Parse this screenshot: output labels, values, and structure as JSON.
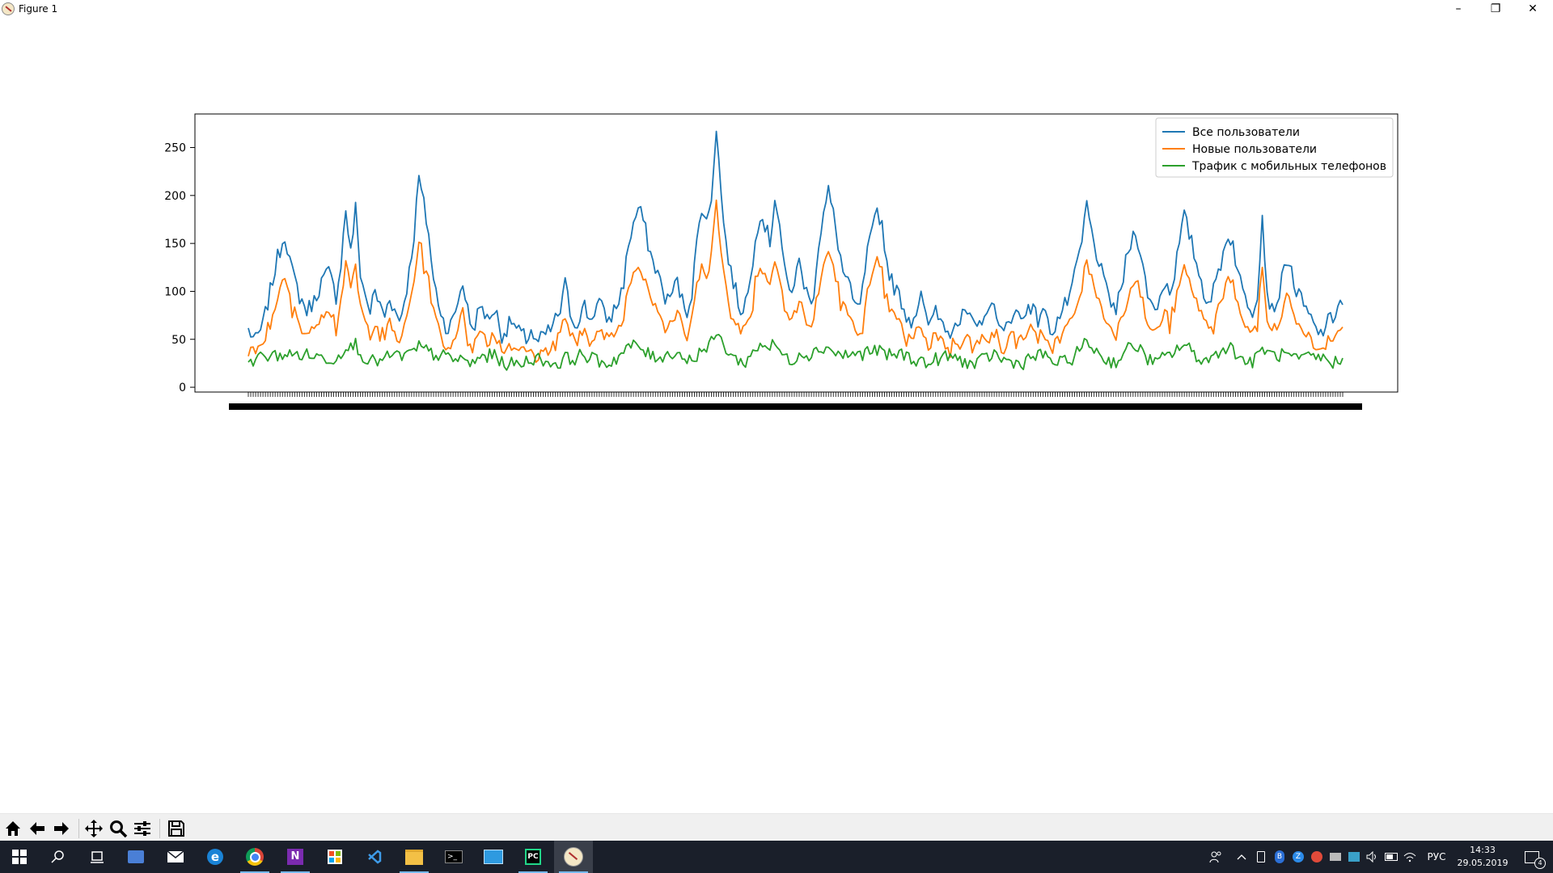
{
  "window": {
    "title": "Figure 1",
    "minimize": "–",
    "restore": "❐",
    "close": "✕"
  },
  "toolbar": {
    "buttons": [
      "home-icon",
      "back-icon",
      "forward-icon",
      "pan-icon",
      "zoom-icon",
      "configure-subplots-icon",
      "save-icon"
    ]
  },
  "taskbar": {
    "apps": [
      "windows-start-icon",
      "search-icon",
      "task-view-icon",
      "media-player-icon",
      "mail-icon",
      "edge-icon",
      "chrome-icon",
      "onenote-icon",
      "store-icon",
      "vscode-icon",
      "file-explorer-icon",
      "terminal-icon",
      "photos-icon",
      "pycharm-icon",
      "matplotlib-figure-icon"
    ],
    "language": "РУС",
    "time": "14:33",
    "date": "29.05.2019",
    "notifications": "4"
  },
  "chart_data": {
    "type": "line",
    "title": "",
    "xlabel": "",
    "ylabel": "",
    "ylim": [
      -5,
      285
    ],
    "yticks": [
      0,
      50,
      100,
      150,
      200,
      250
    ],
    "x_count": 450,
    "x_ticks_note": "dense, overlapping date labels (unreadable)",
    "legend_position": "top-right",
    "series": [
      {
        "name": "Все пользователи",
        "color": "#1f77b4",
        "anchors": [
          [
            0,
            60
          ],
          [
            3,
            48
          ],
          [
            6,
            65
          ],
          [
            9,
            100
          ],
          [
            12,
            135
          ],
          [
            15,
            160
          ],
          [
            18,
            120
          ],
          [
            21,
            95
          ],
          [
            24,
            80
          ],
          [
            27,
            90
          ],
          [
            30,
            110
          ],
          [
            33,
            120
          ],
          [
            36,
            95
          ],
          [
            38,
            130
          ],
          [
            40,
            186
          ],
          [
            42,
            140
          ],
          [
            44,
            186
          ],
          [
            46,
            120
          ],
          [
            48,
            95
          ],
          [
            50,
            80
          ],
          [
            52,
            100
          ],
          [
            54,
            85
          ],
          [
            56,
            75
          ],
          [
            58,
            95
          ],
          [
            60,
            80
          ],
          [
            62,
            70
          ],
          [
            64,
            90
          ],
          [
            66,
            120
          ],
          [
            68,
            160
          ],
          [
            70,
            219
          ],
          [
            72,
            190
          ],
          [
            74,
            160
          ],
          [
            76,
            110
          ],
          [
            78,
            90
          ],
          [
            80,
            70
          ],
          [
            82,
            60
          ],
          [
            84,
            70
          ],
          [
            86,
            90
          ],
          [
            88,
            110
          ],
          [
            90,
            80
          ],
          [
            92,
            60
          ],
          [
            94,
            75
          ],
          [
            96,
            85
          ],
          [
            98,
            70
          ],
          [
            100,
            80
          ],
          [
            102,
            75
          ],
          [
            104,
            55
          ],
          [
            106,
            60
          ],
          [
            108,
            70
          ],
          [
            110,
            60
          ],
          [
            112,
            55
          ],
          [
            114,
            50
          ],
          [
            116,
            60
          ],
          [
            118,
            45
          ],
          [
            120,
            50
          ],
          [
            122,
            55
          ],
          [
            124,
            60
          ],
          [
            126,
            70
          ],
          [
            128,
            80
          ],
          [
            130,
            107
          ],
          [
            132,
            80
          ],
          [
            134,
            65
          ],
          [
            136,
            75
          ],
          [
            138,
            85
          ],
          [
            140,
            70
          ],
          [
            142,
            80
          ],
          [
            144,
            90
          ],
          [
            146,
            75
          ],
          [
            148,
            70
          ],
          [
            150,
            80
          ],
          [
            152,
            90
          ],
          [
            154,
            110
          ],
          [
            156,
            150
          ],
          [
            158,
            170
          ],
          [
            160,
            186
          ],
          [
            162,
            175
          ],
          [
            164,
            150
          ],
          [
            166,
            130
          ],
          [
            168,
            120
          ],
          [
            170,
            100
          ],
          [
            172,
            90
          ],
          [
            174,
            100
          ],
          [
            176,
            110
          ],
          [
            178,
            90
          ],
          [
            180,
            80
          ],
          [
            182,
            100
          ],
          [
            184,
            150
          ],
          [
            186,
            190
          ],
          [
            188,
            170
          ],
          [
            190,
            200
          ],
          [
            192,
            273
          ],
          [
            194,
            200
          ],
          [
            196,
            150
          ],
          [
            198,
            120
          ],
          [
            200,
            100
          ],
          [
            202,
            80
          ],
          [
            204,
            90
          ],
          [
            206,
            110
          ],
          [
            208,
            160
          ],
          [
            210,
            180
          ],
          [
            212,
            170
          ],
          [
            214,
            150
          ],
          [
            216,
            200
          ],
          [
            218,
            170
          ],
          [
            220,
            120
          ],
          [
            222,
            100
          ],
          [
            224,
            110
          ],
          [
            226,
            130
          ],
          [
            228,
            110
          ],
          [
            230,
            90
          ],
          [
            232,
            100
          ],
          [
            234,
            150
          ],
          [
            236,
            180
          ],
          [
            238,
            204
          ],
          [
            240,
            180
          ],
          [
            242,
            150
          ],
          [
            244,
            120
          ],
          [
            246,
            110
          ],
          [
            248,
            90
          ],
          [
            250,
            80
          ],
          [
            252,
            100
          ],
          [
            254,
            140
          ],
          [
            256,
            160
          ],
          [
            258,
            186
          ],
          [
            260,
            170
          ],
          [
            262,
            130
          ],
          [
            264,
            110
          ],
          [
            266,
            100
          ],
          [
            268,
            90
          ],
          [
            270,
            75
          ],
          [
            272,
            70
          ],
          [
            274,
            80
          ],
          [
            276,
            95
          ],
          [
            278,
            70
          ],
          [
            280,
            65
          ],
          [
            282,
            85
          ],
          [
            284,
            70
          ],
          [
            286,
            65
          ],
          [
            288,
            60
          ],
          [
            290,
            70
          ],
          [
            292,
            65
          ],
          [
            294,
            80
          ],
          [
            296,
            70
          ],
          [
            298,
            60
          ],
          [
            300,
            65
          ],
          [
            302,
            80
          ],
          [
            304,
            75
          ],
          [
            306,
            95
          ],
          [
            308,
            60
          ],
          [
            310,
            55
          ],
          [
            312,
            70
          ],
          [
            314,
            80
          ],
          [
            316,
            75
          ],
          [
            318,
            70
          ],
          [
            320,
            90
          ],
          [
            322,
            80
          ],
          [
            324,
            70
          ],
          [
            326,
            85
          ],
          [
            328,
            65
          ],
          [
            330,
            60
          ],
          [
            332,
            70
          ],
          [
            334,
            80
          ],
          [
            336,
            90
          ],
          [
            338,
            100
          ],
          [
            340,
            130
          ],
          [
            342,
            150
          ],
          [
            344,
            192
          ],
          [
            346,
            160
          ],
          [
            348,
            140
          ],
          [
            350,
            120
          ],
          [
            352,
            100
          ],
          [
            354,
            90
          ],
          [
            356,
            80
          ],
          [
            358,
            100
          ],
          [
            360,
            130
          ],
          [
            362,
            150
          ],
          [
            364,
            166
          ],
          [
            366,
            140
          ],
          [
            368,
            110
          ],
          [
            370,
            90
          ],
          [
            372,
            80
          ],
          [
            374,
            95
          ],
          [
            376,
            110
          ],
          [
            378,
            100
          ],
          [
            380,
            120
          ],
          [
            382,
            150
          ],
          [
            384,
            178
          ],
          [
            386,
            160
          ],
          [
            388,
            140
          ],
          [
            390,
            120
          ],
          [
            392,
            100
          ],
          [
            394,
            90
          ],
          [
            396,
            100
          ],
          [
            398,
            120
          ],
          [
            400,
            140
          ],
          [
            402,
            160
          ],
          [
            404,
            150
          ],
          [
            406,
            120
          ],
          [
            408,
            100
          ],
          [
            410,
            90
          ],
          [
            412,
            80
          ],
          [
            414,
            100
          ],
          [
            416,
            178
          ],
          [
            418,
            100
          ],
          [
            420,
            80
          ],
          [
            422,
            90
          ],
          [
            424,
            110
          ],
          [
            426,
            136
          ],
          [
            428,
            120
          ],
          [
            430,
            100
          ],
          [
            432,
            90
          ],
          [
            434,
            80
          ],
          [
            436,
            70
          ],
          [
            438,
            60
          ],
          [
            440,
            55
          ],
          [
            442,
            65
          ],
          [
            444,
            70
          ]
        ],
        "notes": "first 445 points approximate"
      },
      {
        "name": "Новые пользователи",
        "color": "#ff7f0e"
      },
      {
        "name": "Трафик с мобильных телефонов",
        "color": "#2ca02c"
      }
    ]
  }
}
